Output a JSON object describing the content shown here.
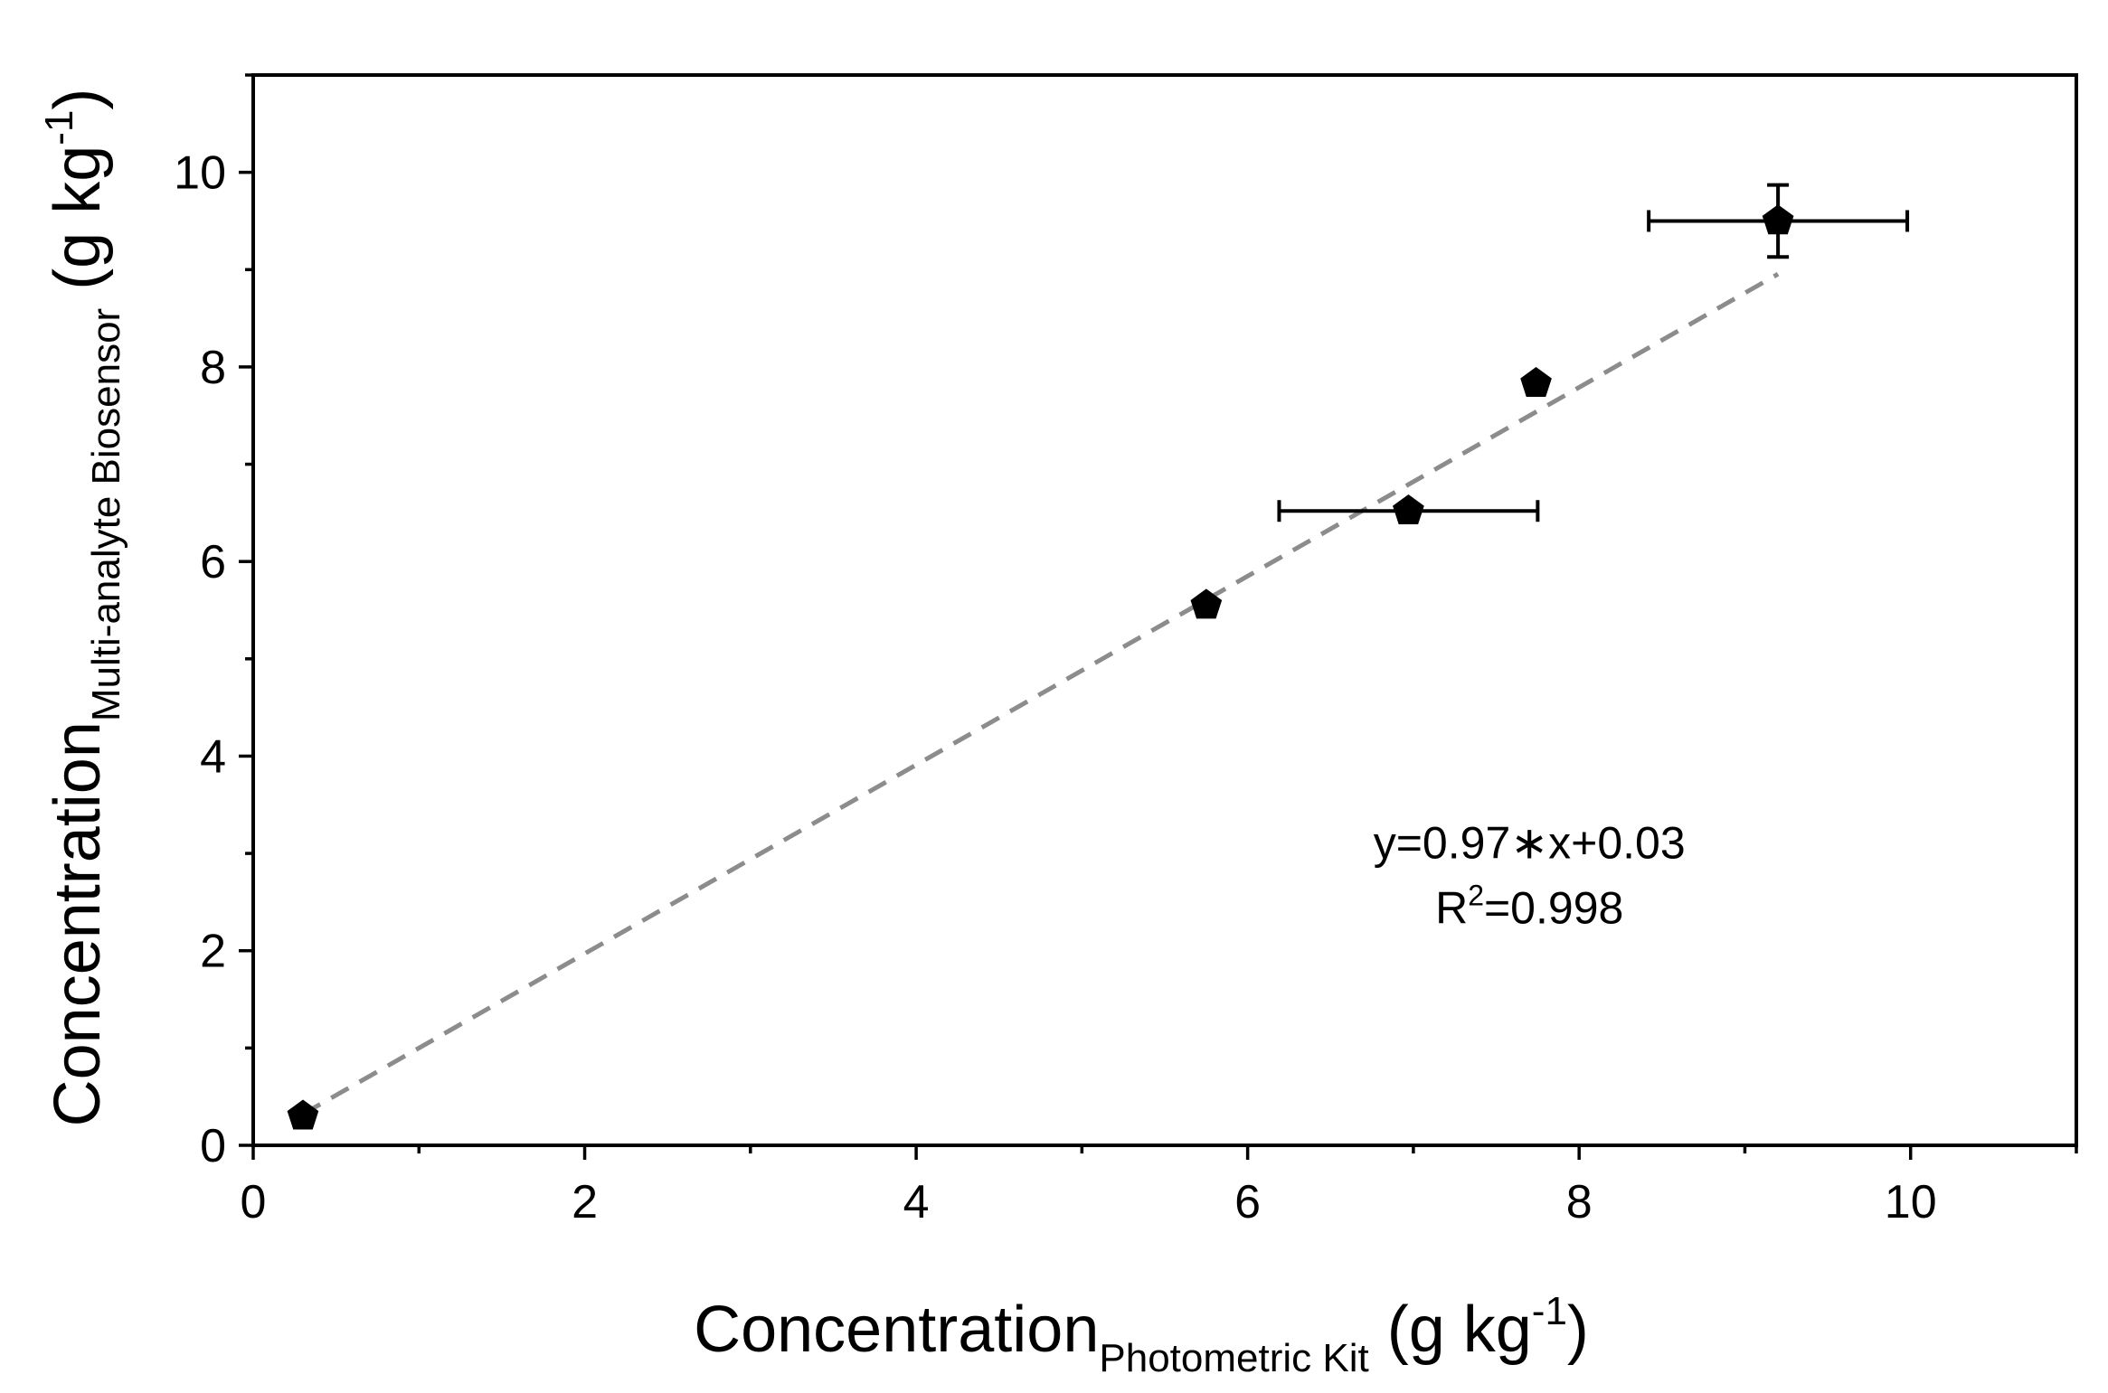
{
  "chart_data": {
    "type": "scatter",
    "title": "",
    "xlabel": {
      "main": "Concentration",
      "subscript": "Photometric Kit",
      "unit_prefix": " (g kg",
      "unit_superscript": "-1",
      "unit_suffix": ")"
    },
    "ylabel": {
      "main": "Concentration",
      "subscript": "Multi-analyte Biosensor",
      "unit_prefix": " (g kg",
      "unit_superscript": "-1",
      "unit_suffix": ")"
    },
    "xlim": [
      0,
      11
    ],
    "ylim": [
      0,
      11
    ],
    "x_ticks": [
      0,
      2,
      4,
      6,
      8,
      10
    ],
    "y_ticks": [
      0,
      2,
      4,
      6,
      8,
      10
    ],
    "x_tick_labels": [
      "0",
      "2",
      "4",
      "6",
      "8",
      "10"
    ],
    "y_tick_labels": [
      "0",
      "2",
      "4",
      "6",
      "8",
      "10"
    ],
    "grid": false,
    "series": [
      {
        "name": "samples",
        "marker": "pentagon",
        "color": "#000000",
        "points": [
          {
            "x": 0.3,
            "y": 0.3,
            "x_err": 0,
            "y_err": 0
          },
          {
            "x": 5.75,
            "y": 5.55,
            "x_err": 0,
            "y_err": 0.05
          },
          {
            "x": 6.97,
            "y": 6.52,
            "x_err": 0.78,
            "y_err": 0
          },
          {
            "x": 7.74,
            "y": 7.83,
            "x_err": 0,
            "y_err": 0
          },
          {
            "x": 9.2,
            "y": 9.5,
            "x_err": 0.78,
            "y_err": 0.37
          }
        ]
      }
    ],
    "fit_line": {
      "style": "dashed",
      "color": "#8c8c8c",
      "slope": 0.97,
      "intercept": 0.03,
      "x_range": [
        0.3,
        9.2
      ]
    },
    "annotations": {
      "equation": "y=0.97∗x+0.03",
      "r_squared_prefix": "R",
      "r_squared_superscript": "2",
      "r_squared_value": "=0.998",
      "anchor_x": 7.7,
      "anchor_y": 2.95
    }
  }
}
